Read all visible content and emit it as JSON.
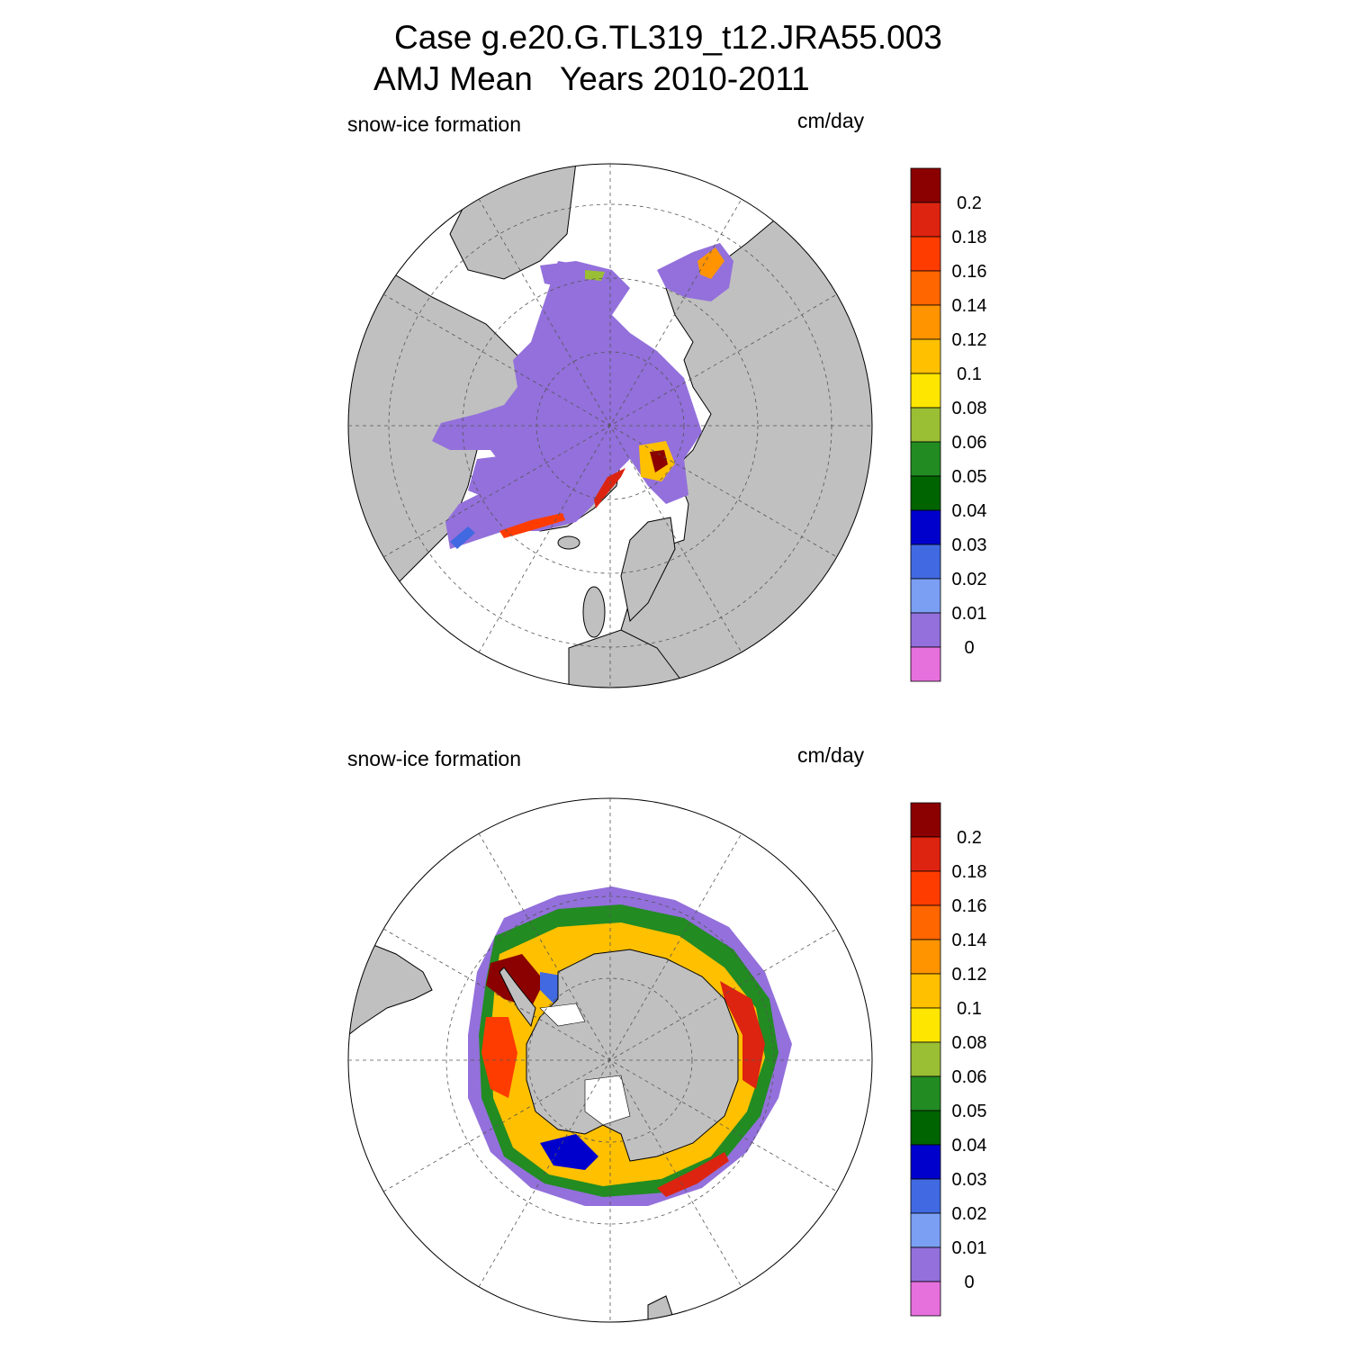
{
  "title": {
    "line1": "Case g.e20.G.TL319_t12.JRA55.003",
    "line2": "AMJ Mean   Years 2010-2011"
  },
  "colors": {
    "land": "#c0c0c0",
    "ocean": "#ffffff",
    "ice_zero": "#9370db"
  },
  "colorbar": {
    "levels": [
      "0.2",
      "0.18",
      "0.16",
      "0.14",
      "0.12",
      "0.1",
      "0.08",
      "0.06",
      "0.05",
      "0.04",
      "0.03",
      "0.02",
      "0.01",
      "0"
    ],
    "colors": [
      "#8b0000",
      "#dc2410",
      "#ff3c00",
      "#ff6600",
      "#ff9400",
      "#ffc000",
      "#ffe600",
      "#9abe34",
      "#228b22",
      "#006400",
      "#0000cd",
      "#4169e1",
      "#7b9ff3",
      "#9370db",
      "#e670dc"
    ]
  },
  "panels": [
    {
      "id": "north",
      "hemisphere": "north",
      "left_label": "snow-ice formation",
      "right_label": "cm/day"
    },
    {
      "id": "south",
      "hemisphere": "south",
      "left_label": "snow-ice formation",
      "right_label": "cm/day"
    }
  ]
}
